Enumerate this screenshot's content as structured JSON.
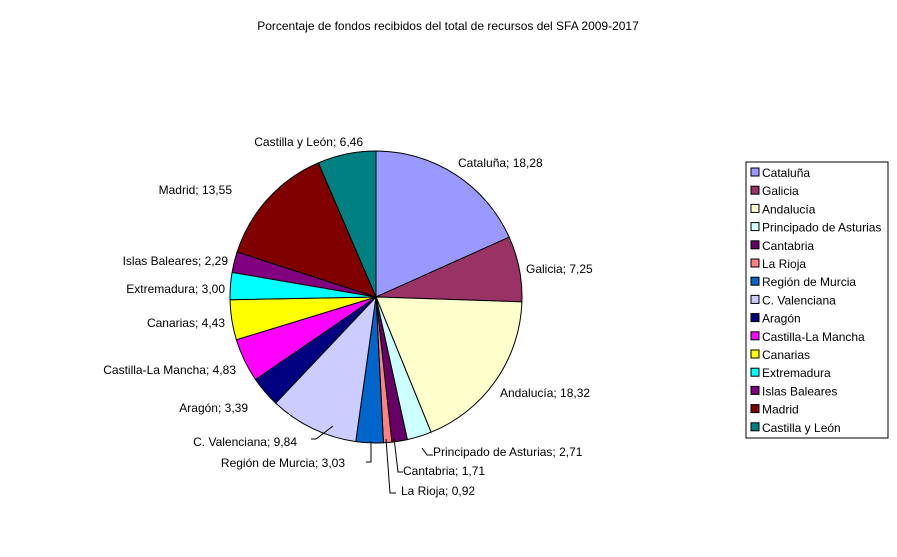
{
  "chart_data": {
    "type": "pie",
    "title": "Porcentaje de fondos recibidos del total de recursos del SFA 2009-2017",
    "slices": [
      {
        "name": "Cataluña",
        "value": 18.28,
        "label": "Cataluña; 18,28",
        "color": "#9999ff"
      },
      {
        "name": "Galicia",
        "value": 7.25,
        "label": "Galicia; 7,25",
        "color": "#993366"
      },
      {
        "name": "Andalucía",
        "value": 18.32,
        "label": "Andalucía; 18,32",
        "color": "#ffffcc"
      },
      {
        "name": "Principado de Asturias",
        "value": 2.71,
        "label": "Principado de Asturias; 2,71",
        "color": "#ccffff"
      },
      {
        "name": "Cantabria",
        "value": 1.71,
        "label": "Cantabria; 1,71",
        "color": "#660066"
      },
      {
        "name": "La Rioja",
        "value": 0.92,
        "label": "La Rioja; 0,92",
        "color": "#ff8080"
      },
      {
        "name": "Región de Murcia",
        "value": 3.03,
        "label": "Región de Murcia; 3,03",
        "color": "#0066cc"
      },
      {
        "name": "C. Valenciana",
        "value": 9.84,
        "label": "C. Valenciana; 9,84",
        "color": "#ccccff"
      },
      {
        "name": "Aragón",
        "value": 3.39,
        "label": "Aragón; 3,39",
        "color": "#000080"
      },
      {
        "name": "Castilla-La Mancha",
        "value": 4.83,
        "label": "Castilla-La Mancha; 4,83",
        "color": "#ff00ff"
      },
      {
        "name": "Canarias",
        "value": 4.43,
        "label": "Canarias; 4,43",
        "color": "#ffff00"
      },
      {
        "name": "Extremadura",
        "value": 3.0,
        "label": "Extremadura; 3,00",
        "color": "#00ffff"
      },
      {
        "name": "Islas Baleares",
        "value": 2.29,
        "label": "Islas Baleares; 2,29",
        "color": "#800080"
      },
      {
        "name": "Madrid",
        "value": 13.55,
        "label": "Madrid; 13,55",
        "color": "#800000"
      },
      {
        "name": "Castilla y León",
        "value": 6.46,
        "label": "Castilla y León; 6,46",
        "color": "#008080"
      }
    ],
    "legend_position": "right"
  }
}
